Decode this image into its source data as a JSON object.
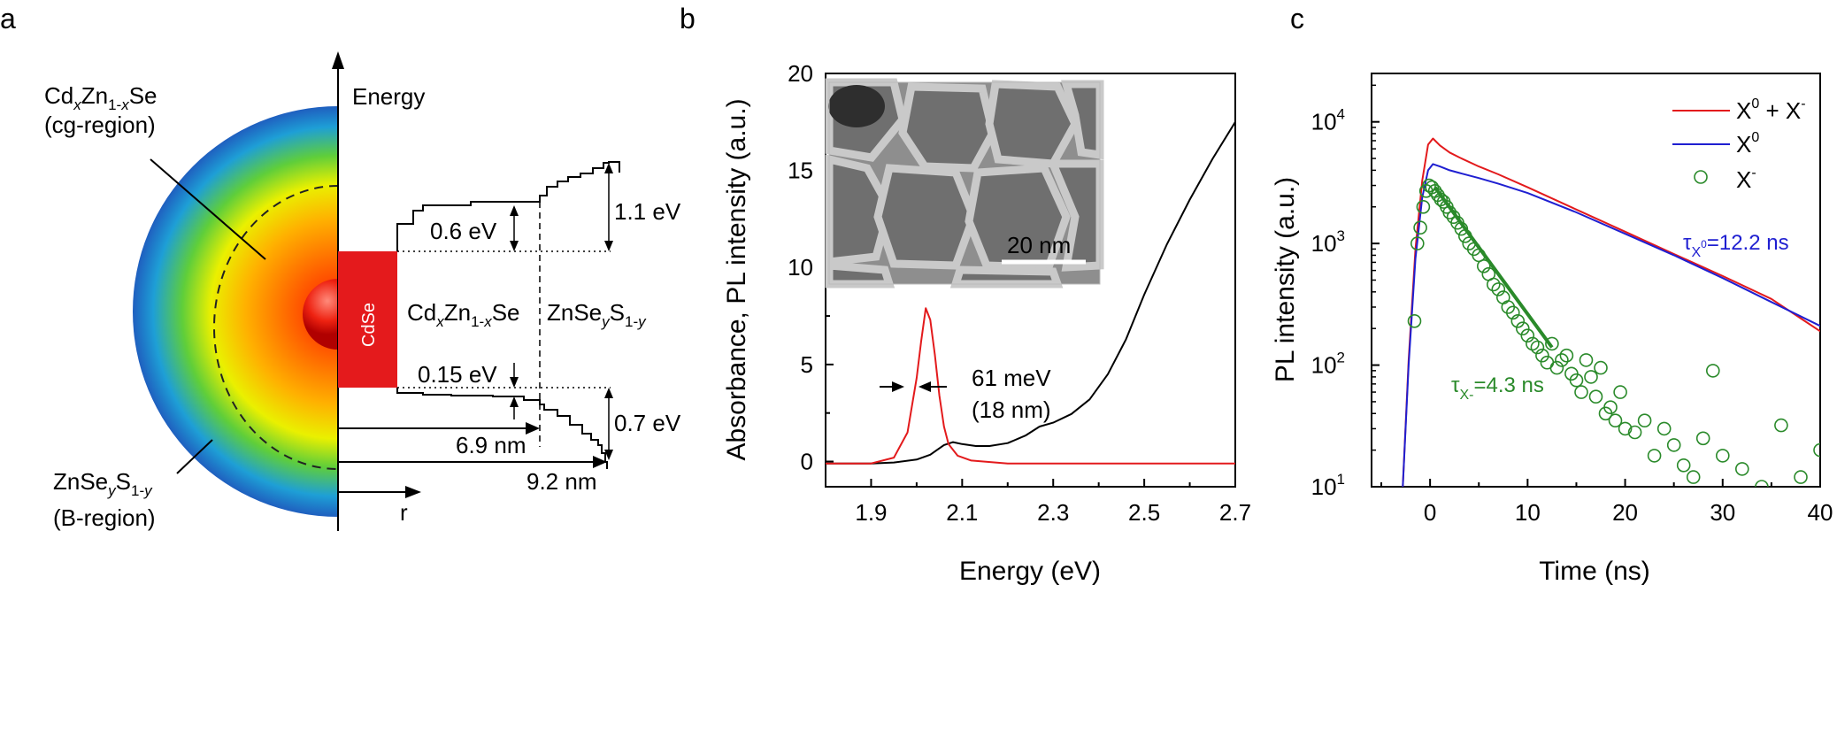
{
  "panels": {
    "a": {
      "letter": "a",
      "energy_axis_label": "Energy",
      "r_axis_label": "r",
      "cg_region_name": "Cd_{x}Zn_{1-x}Se",
      "cg_region_sub": "(cg-region)",
      "b_region_name": "ZnSe_{y}S_{1-y}",
      "b_region_sub": "(B-region)",
      "core_label": "CdSe",
      "shell1_label": "Cd_{x}Zn_{1-x}Se",
      "shell2_label": "ZnSe_{y}S_{1-y}",
      "offsets": {
        "cb_step": "0.6 eV",
        "cb_total": "1.1 eV",
        "vb_step": "0.15 eV",
        "vb_total": "0.7 eV",
        "radius_inner": "6.9 nm",
        "radius_outer": "9.2 nm"
      },
      "colors": {
        "core": "#e41a1c",
        "shell_center": "#ff2a00",
        "shell_edge": "#1f5fbf"
      }
    },
    "b": {
      "letter": "b",
      "scale_bar": "20 nm",
      "fwhm_label_1": "61 meV",
      "fwhm_label_2": "(18 nm)"
    },
    "c": {
      "letter": "c",
      "tau_neutral": "=12.2 ns",
      "tau_charged": "=4.3 ns"
    }
  },
  "chart_data": [
    {
      "panel": "b",
      "type": "line",
      "xlabel": "Energy (eV)",
      "ylabel": "Absorbance, PL intensity (a.u.)",
      "xlim": [
        1.8,
        2.7
      ],
      "ylim": [
        -1.3,
        20
      ],
      "xticks": [
        1.9,
        2.1,
        2.3,
        2.5,
        2.7
      ],
      "yticks": [
        0,
        5,
        10,
        15,
        20
      ],
      "xtick_labels": [
        "1.9",
        "2.1",
        "2.3",
        "2.5",
        "2.7"
      ],
      "ytick_labels": [
        "0",
        "5",
        "10",
        "15",
        "20"
      ],
      "grid": false,
      "series": [
        {
          "color": "#000000",
          "x": [
            1.8,
            1.9,
            1.95,
            2.0,
            2.03,
            2.06,
            2.08,
            2.1,
            2.13,
            2.16,
            2.2,
            2.24,
            2.27,
            2.3,
            2.34,
            2.38,
            2.42,
            2.46,
            2.5,
            2.55,
            2.6,
            2.65,
            2.7
          ],
          "y": [
            -0.1,
            -0.1,
            -0.05,
            0.1,
            0.35,
            0.85,
            1.0,
            0.9,
            0.8,
            0.8,
            0.95,
            1.35,
            1.8,
            2.0,
            2.45,
            3.2,
            4.5,
            6.3,
            8.6,
            11.2,
            13.5,
            15.6,
            17.5
          ]
        },
        {
          "color": "#e31a1c",
          "x": [
            1.8,
            1.9,
            1.95,
            1.98,
            2.0,
            2.01,
            2.02,
            2.03,
            2.04,
            2.05,
            2.06,
            2.07,
            2.09,
            2.12,
            2.2,
            2.7
          ],
          "y": [
            -0.1,
            -0.1,
            0.2,
            1.5,
            4.3,
            6.2,
            7.9,
            7.3,
            5.5,
            3.4,
            1.8,
            0.9,
            0.3,
            0.05,
            -0.1,
            -0.1
          ]
        }
      ]
    },
    {
      "panel": "c",
      "type": "line",
      "xlabel": "Time (ns)",
      "ylabel": "PL intensity (a.u.)",
      "xlim": [
        -6,
        40
      ],
      "ylim": [
        10,
        25000
      ],
      "log_y": true,
      "xticks": [
        0,
        10,
        20,
        30,
        40
      ],
      "xtick_labels": [
        "0",
        "10",
        "20",
        "30",
        "40"
      ],
      "ytick_values": [
        10,
        100,
        1000,
        10000
      ],
      "ytick_labels": [
        {
          "base": "10",
          "exp": "1"
        },
        {
          "base": "10",
          "exp": "2"
        },
        {
          "base": "10",
          "exp": "3"
        },
        {
          "base": "10",
          "exp": "4"
        }
      ],
      "legend": {
        "placement": "top-right",
        "entries": [
          {
            "label_parts": [
              "X",
              "0",
              " + X",
              "-"
            ],
            "color": "#e31a1c",
            "marker": "line"
          },
          {
            "label_parts": [
              "X",
              "0"
            ],
            "color": "#1f1fd1",
            "marker": "line"
          },
          {
            "label_parts": [
              "X",
              "-"
            ],
            "color": "#2a8a2a",
            "marker": "circle"
          }
        ]
      },
      "series": [
        {
          "label_ref": 0,
          "color": "#e31a1c",
          "x": [
            -2.8,
            -2.2,
            -1.5,
            -0.8,
            -0.2,
            0.3,
            1,
            2,
            3,
            5,
            7,
            10,
            15,
            20,
            25,
            30,
            35,
            40
          ],
          "y": [
            10,
            110,
            900,
            3300,
            6500,
            7300,
            6400,
            5600,
            5100,
            4300,
            3700,
            2900,
            1900,
            1250,
            820,
            540,
            350,
            190
          ]
        },
        {
          "label_ref": 1,
          "color": "#1f1fd1",
          "x": [
            -2.8,
            -2.2,
            -1.5,
            -0.8,
            -0.2,
            0.3,
            1,
            2,
            3,
            5,
            7,
            10,
            15,
            20,
            25,
            30,
            35,
            40
          ],
          "y": [
            10,
            100,
            750,
            2400,
            4000,
            4500,
            4300,
            4000,
            3800,
            3450,
            3100,
            2600,
            1800,
            1200,
            800,
            520,
            330,
            210
          ]
        },
        {
          "label_ref": 2,
          "color": "#2a8a2a",
          "x": [
            -1.6,
            -1.3,
            -1.0,
            -0.7,
            -0.4,
            -0.1,
            0.2,
            0.5,
            0.8,
            1.1,
            1.4,
            1.7,
            2.0,
            2.4,
            2.8,
            3.2,
            3.6,
            4.0,
            4.5,
            5.0,
            5.5,
            6.0,
            6.5,
            7.0,
            7.5,
            8.0,
            8.5,
            9.0,
            9.5,
            10.0,
            10.5,
            11.0,
            11.5,
            12.0,
            12.5,
            13.0,
            13.5,
            14.0,
            14.5,
            15.0,
            15.5,
            16.0,
            16.5,
            17.0,
            17.5,
            18.0,
            18.5,
            19.0,
            19.5,
            20.0,
            21,
            22,
            23,
            24,
            25,
            26,
            27,
            28,
            29,
            30,
            32,
            34,
            36,
            38,
            40
          ],
          "y": [
            230,
            1000,
            1350,
            2000,
            2700,
            3000,
            2900,
            2700,
            2500,
            2300,
            2200,
            2000,
            1800,
            1650,
            1480,
            1320,
            1150,
            1000,
            900,
            800,
            650,
            560,
            460,
            420,
            360,
            300,
            270,
            230,
            200,
            175,
            150,
            140,
            120,
            105,
            150,
            95,
            110,
            120,
            85,
            75,
            60,
            110,
            80,
            55,
            95,
            40,
            45,
            35,
            60,
            30,
            28,
            35,
            18,
            30,
            22,
            15,
            12,
            25,
            90,
            18,
            14,
            10,
            32,
            12,
            20
          ]
        },
        {
          "color": "#2a8a2a",
          "x": [
            0.5,
            12.5
          ],
          "y": [
            2900,
            140
          ]
        }
      ]
    }
  ]
}
